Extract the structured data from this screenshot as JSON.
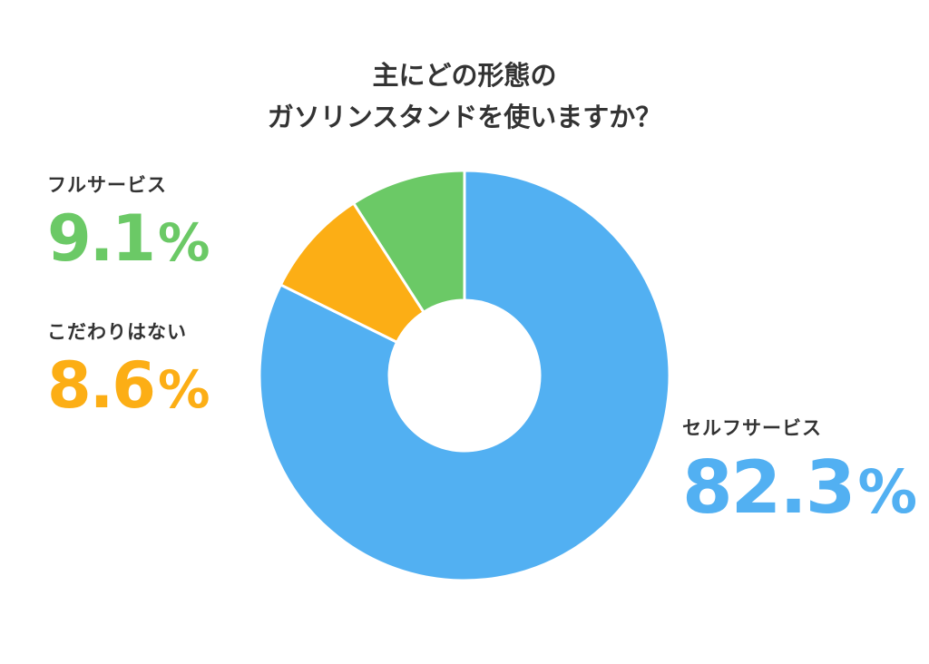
{
  "chart_data": {
    "type": "pie",
    "donut": true,
    "title_lines": [
      "主にどの形態の",
      "ガソリンスタンドを使いますか？"
    ],
    "slices": [
      {
        "label": "セルフサービス",
        "value": 82.3,
        "value_text": "82.3",
        "color": "#52B0F2"
      },
      {
        "label": "こだわりはない",
        "value": 8.6,
        "value_text": "8.6",
        "color": "#FCAE15"
      },
      {
        "label": "フルサービス",
        "value": 9.1,
        "value_text": "9.1",
        "color": "#6BC966"
      }
    ],
    "unit": "%",
    "start_angle_deg": 0,
    "direction": "clockwise",
    "legend": "none"
  }
}
